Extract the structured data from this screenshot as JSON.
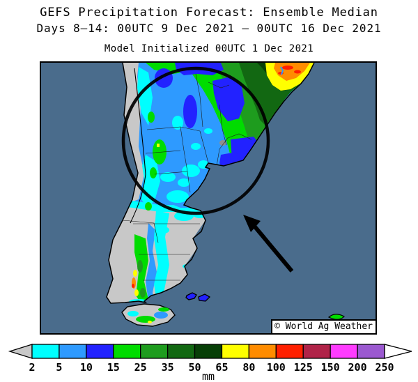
{
  "header": {
    "title": "GEFS Precipitation Forecast: Ensemble Median",
    "subtitle": "Days 8–14: 00UTC 9 Dec 2021 — 00UTC 16 Dec 2021",
    "init_line": "Model Initialized 00UTC 1 Dec 2021"
  },
  "map": {
    "watermark": "© World Ag Weather",
    "ocean_color": "#4a6c8c",
    "dry_land_color": "#c8c8c8",
    "annotations": {
      "circle": "highlight-circle",
      "arrow": "pointer-arrow"
    }
  },
  "legend": {
    "unit": "mm",
    "ticks": [
      "2",
      "5",
      "10",
      "15",
      "25",
      "35",
      "50",
      "65",
      "80",
      "100",
      "125",
      "150",
      "200",
      "250"
    ],
    "colors": [
      "#00ffff",
      "#2e9aff",
      "#2222ff",
      "#00dc00",
      "#1e9c1e",
      "#126812",
      "#073f07",
      "#ffff00",
      "#ff8c00",
      "#ff2000",
      "#b02348",
      "#ff3cff",
      "#9b59d0"
    ],
    "underflow_color": "#c8c8c8",
    "overflow_color": "#ffffff"
  }
}
